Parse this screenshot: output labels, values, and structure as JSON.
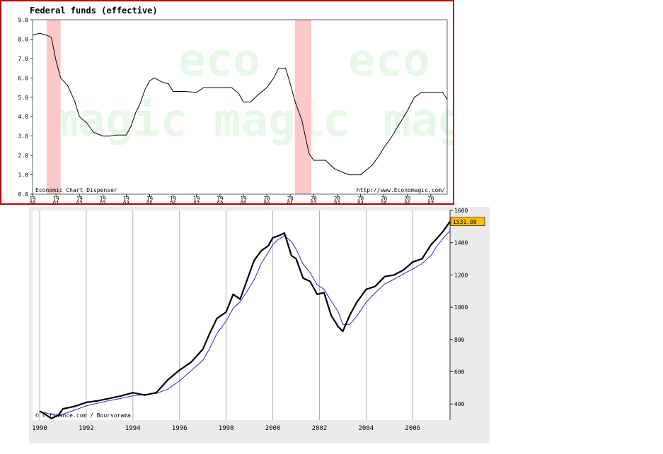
{
  "chart_data": [
    {
      "type": "line",
      "title": "Federal funds (effective)",
      "ylim": [
        0,
        9
      ],
      "yticks": [
        "0.0",
        "1.0",
        "2.0",
        "3.0",
        "4.0",
        "5.0",
        "6.0",
        "7.0",
        "8.0",
        "9.0"
      ],
      "xticks": [
        {
          "top": "19",
          "bottom": "90"
        },
        {
          "top": "19",
          "bottom": "91"
        },
        {
          "top": "19",
          "bottom": "92"
        },
        {
          "top": "19",
          "bottom": "93"
        },
        {
          "top": "19",
          "bottom": "94"
        },
        {
          "top": "19",
          "bottom": "95"
        },
        {
          "top": "19",
          "bottom": "96"
        },
        {
          "top": "19",
          "bottom": "97"
        },
        {
          "top": "19",
          "bottom": "98"
        },
        {
          "top": "19",
          "bottom": "99"
        },
        {
          "top": "20",
          "bottom": "00"
        },
        {
          "top": "20",
          "bottom": "01"
        },
        {
          "top": "20",
          "bottom": "02"
        },
        {
          "top": "20",
          "bottom": "03"
        },
        {
          "top": "20",
          "bottom": "04"
        },
        {
          "top": "20",
          "bottom": "05"
        },
        {
          "top": "20",
          "bottom": "06"
        },
        {
          "top": "20",
          "bottom": "07"
        }
      ],
      "xrange": [
        1990.0,
        2007.7
      ],
      "recessions": [
        [
          1990.6,
          1991.2
        ],
        [
          2001.2,
          2001.9
        ]
      ],
      "recession_color": "#ffc8c8",
      "line_color": "#000000",
      "x": [
        1990.0,
        1990.3,
        1990.6,
        1990.8,
        1991.0,
        1991.2,
        1991.5,
        1991.8,
        1992.0,
        1992.3,
        1992.6,
        1993.0,
        1993.3,
        1993.6,
        1994.0,
        1994.2,
        1994.4,
        1994.6,
        1994.8,
        1995.0,
        1995.2,
        1995.5,
        1995.8,
        1996.0,
        1996.5,
        1997.0,
        1997.3,
        1997.6,
        1998.0,
        1998.5,
        1998.8,
        1999.0,
        1999.3,
        1999.6,
        2000.0,
        2000.3,
        2000.5,
        2000.8,
        2001.0,
        2001.2,
        2001.5,
        2001.8,
        2002.0,
        2002.5,
        2002.9,
        2003.0,
        2003.5,
        2003.8,
        2004.0,
        2004.5,
        2004.8,
        2005.0,
        2005.3,
        2005.6,
        2006.0,
        2006.3,
        2006.6,
        2007.0,
        2007.3,
        2007.5,
        2007.7
      ],
      "y": [
        8.2,
        8.3,
        8.2,
        8.1,
        6.9,
        6.0,
        5.6,
        4.8,
        4.0,
        3.7,
        3.2,
        3.0,
        3.0,
        3.05,
        3.05,
        3.5,
        4.2,
        4.7,
        5.4,
        5.85,
        6.0,
        5.8,
        5.7,
        5.3,
        5.3,
        5.25,
        5.5,
        5.5,
        5.5,
        5.5,
        5.2,
        4.75,
        4.75,
        5.1,
        5.5,
        6.0,
        6.5,
        6.5,
        5.7,
        4.8,
        3.8,
        2.1,
        1.75,
        1.75,
        1.3,
        1.25,
        1.0,
        1.0,
        1.0,
        1.5,
        2.0,
        2.4,
        2.9,
        3.5,
        4.3,
        5.0,
        5.25,
        5.25,
        5.25,
        5.25,
        4.9
      ],
      "footer_left": "Economic Chart Dispenser",
      "footer_right": "http://www.Economagic.com/"
    },
    {
      "type": "line",
      "ylim": [
        300,
        1600
      ],
      "yticks": [
        "400",
        "600",
        "800",
        "1000",
        "1200",
        "1400",
        "1600"
      ],
      "xticks": [
        "1990",
        "1992",
        "1994",
        "1996",
        "1998",
        "2000",
        "2002",
        "2004",
        "2006"
      ],
      "xrange": [
        1990.0,
        2007.6
      ],
      "last_value": "1531.00",
      "credit": "© f-finance.com / Boursorama",
      "line_color": "#000000",
      "ma_color": "#2030d0",
      "x": [
        1990.0,
        1990.2,
        1990.5,
        1990.8,
        1991.0,
        1991.5,
        1992.0,
        1992.5,
        1993.0,
        1993.5,
        1994.0,
        1994.5,
        1995.0,
        1995.5,
        1996.0,
        1996.5,
        1997.0,
        1997.3,
        1997.6,
        1998.0,
        1998.3,
        1998.6,
        1998.9,
        1999.2,
        1999.5,
        1999.8,
        2000.0,
        2000.2,
        2000.5,
        2000.8,
        2001.0,
        2001.3,
        2001.6,
        2001.9,
        2002.2,
        2002.5,
        2002.8,
        2003.0,
        2003.3,
        2003.6,
        2004.0,
        2004.4,
        2004.8,
        2005.2,
        2005.6,
        2006.0,
        2006.4,
        2006.8,
        2007.0,
        2007.3,
        2007.6
      ],
      "y": [
        355,
        340,
        310,
        330,
        370,
        385,
        410,
        420,
        435,
        450,
        470,
        455,
        470,
        550,
        610,
        660,
        740,
        840,
        930,
        970,
        1080,
        1050,
        1170,
        1290,
        1350,
        1380,
        1430,
        1440,
        1460,
        1320,
        1300,
        1180,
        1160,
        1080,
        1090,
        950,
        880,
        850,
        950,
        1030,
        1110,
        1130,
        1190,
        1200,
        1230,
        1280,
        1300,
        1390,
        1420,
        1470,
        1531
      ]
    }
  ]
}
